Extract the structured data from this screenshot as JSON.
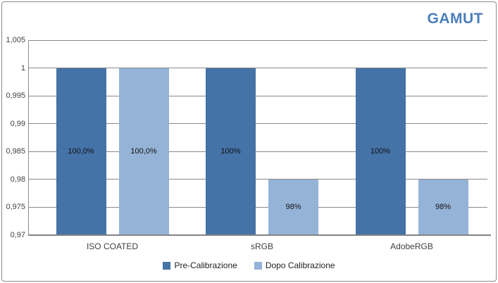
{
  "title": "GAMUT",
  "title_color": "#4a7ebb",
  "chart_data": {
    "type": "bar",
    "title": "GAMUT",
    "categories": [
      "ISO COATED",
      "sRGB",
      "AdobeRGB"
    ],
    "series": [
      {
        "name": "Pre-Calibrazione",
        "color": "#4572a7",
        "values": [
          1.0,
          1.0,
          1.0
        ],
        "labels": [
          "100,0%",
          "100%",
          "100%"
        ]
      },
      {
        "name": "Dopo Calibrazione",
        "color": "#95b3d7",
        "values": [
          1.0,
          0.98,
          0.98
        ],
        "labels": [
          "100,0%",
          "98%",
          "98%"
        ]
      }
    ],
    "ylim": [
      0.97,
      1.005
    ],
    "ytick_step": 0.005,
    "yticks": [
      "0,97",
      "0,975",
      "0,98",
      "0,985",
      "0,99",
      "0,995",
      "1",
      "1,005"
    ],
    "grid": true,
    "gridline_color": "#8a8a8a",
    "legend_position": "bottom"
  }
}
